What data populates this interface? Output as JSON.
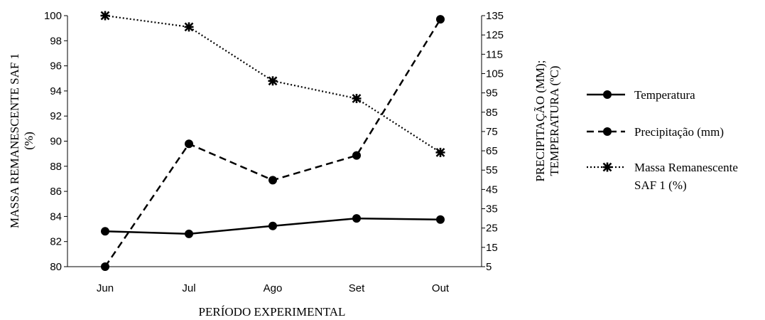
{
  "chart_data": {
    "type": "line",
    "categories": [
      "Jun",
      "Jul",
      "Ago",
      "Set",
      "Out"
    ],
    "xlabel": "PERÍODO EXPERIMENTAL",
    "ylabel_left": [
      "MASSA REMANESCENTE  SAF 1",
      "(%)"
    ],
    "ylabel_right": [
      "PRECIPITAÇÃO (MM);",
      "TEMPERATURA (ºC)"
    ],
    "ylim_left": [
      80,
      100
    ],
    "yticks_left": [
      80,
      82,
      84,
      86,
      88,
      90,
      92,
      94,
      96,
      98,
      100
    ],
    "ylim_right": [
      5,
      135
    ],
    "yticks_right": [
      5,
      15,
      25,
      35,
      45,
      55,
      65,
      75,
      85,
      95,
      105,
      115,
      125,
      135
    ],
    "grid": false,
    "legend_position": "right",
    "series": [
      {
        "name": "Temperatura",
        "axis": "right",
        "style": "solid",
        "values": [
          23.3,
          22.0,
          26.1,
          30.0,
          29.4
        ]
      },
      {
        "name": "Precipitação (mm)",
        "axis": "right",
        "style": "dashed",
        "values": [
          5.0,
          68.6,
          49.8,
          62.6,
          133.1
        ]
      },
      {
        "name": "Massa Remanescente SAF 1 (%)",
        "axis": "left",
        "style": "dotted",
        "values": [
          100.0,
          99.1,
          94.8,
          93.4,
          89.1
        ]
      }
    ]
  }
}
